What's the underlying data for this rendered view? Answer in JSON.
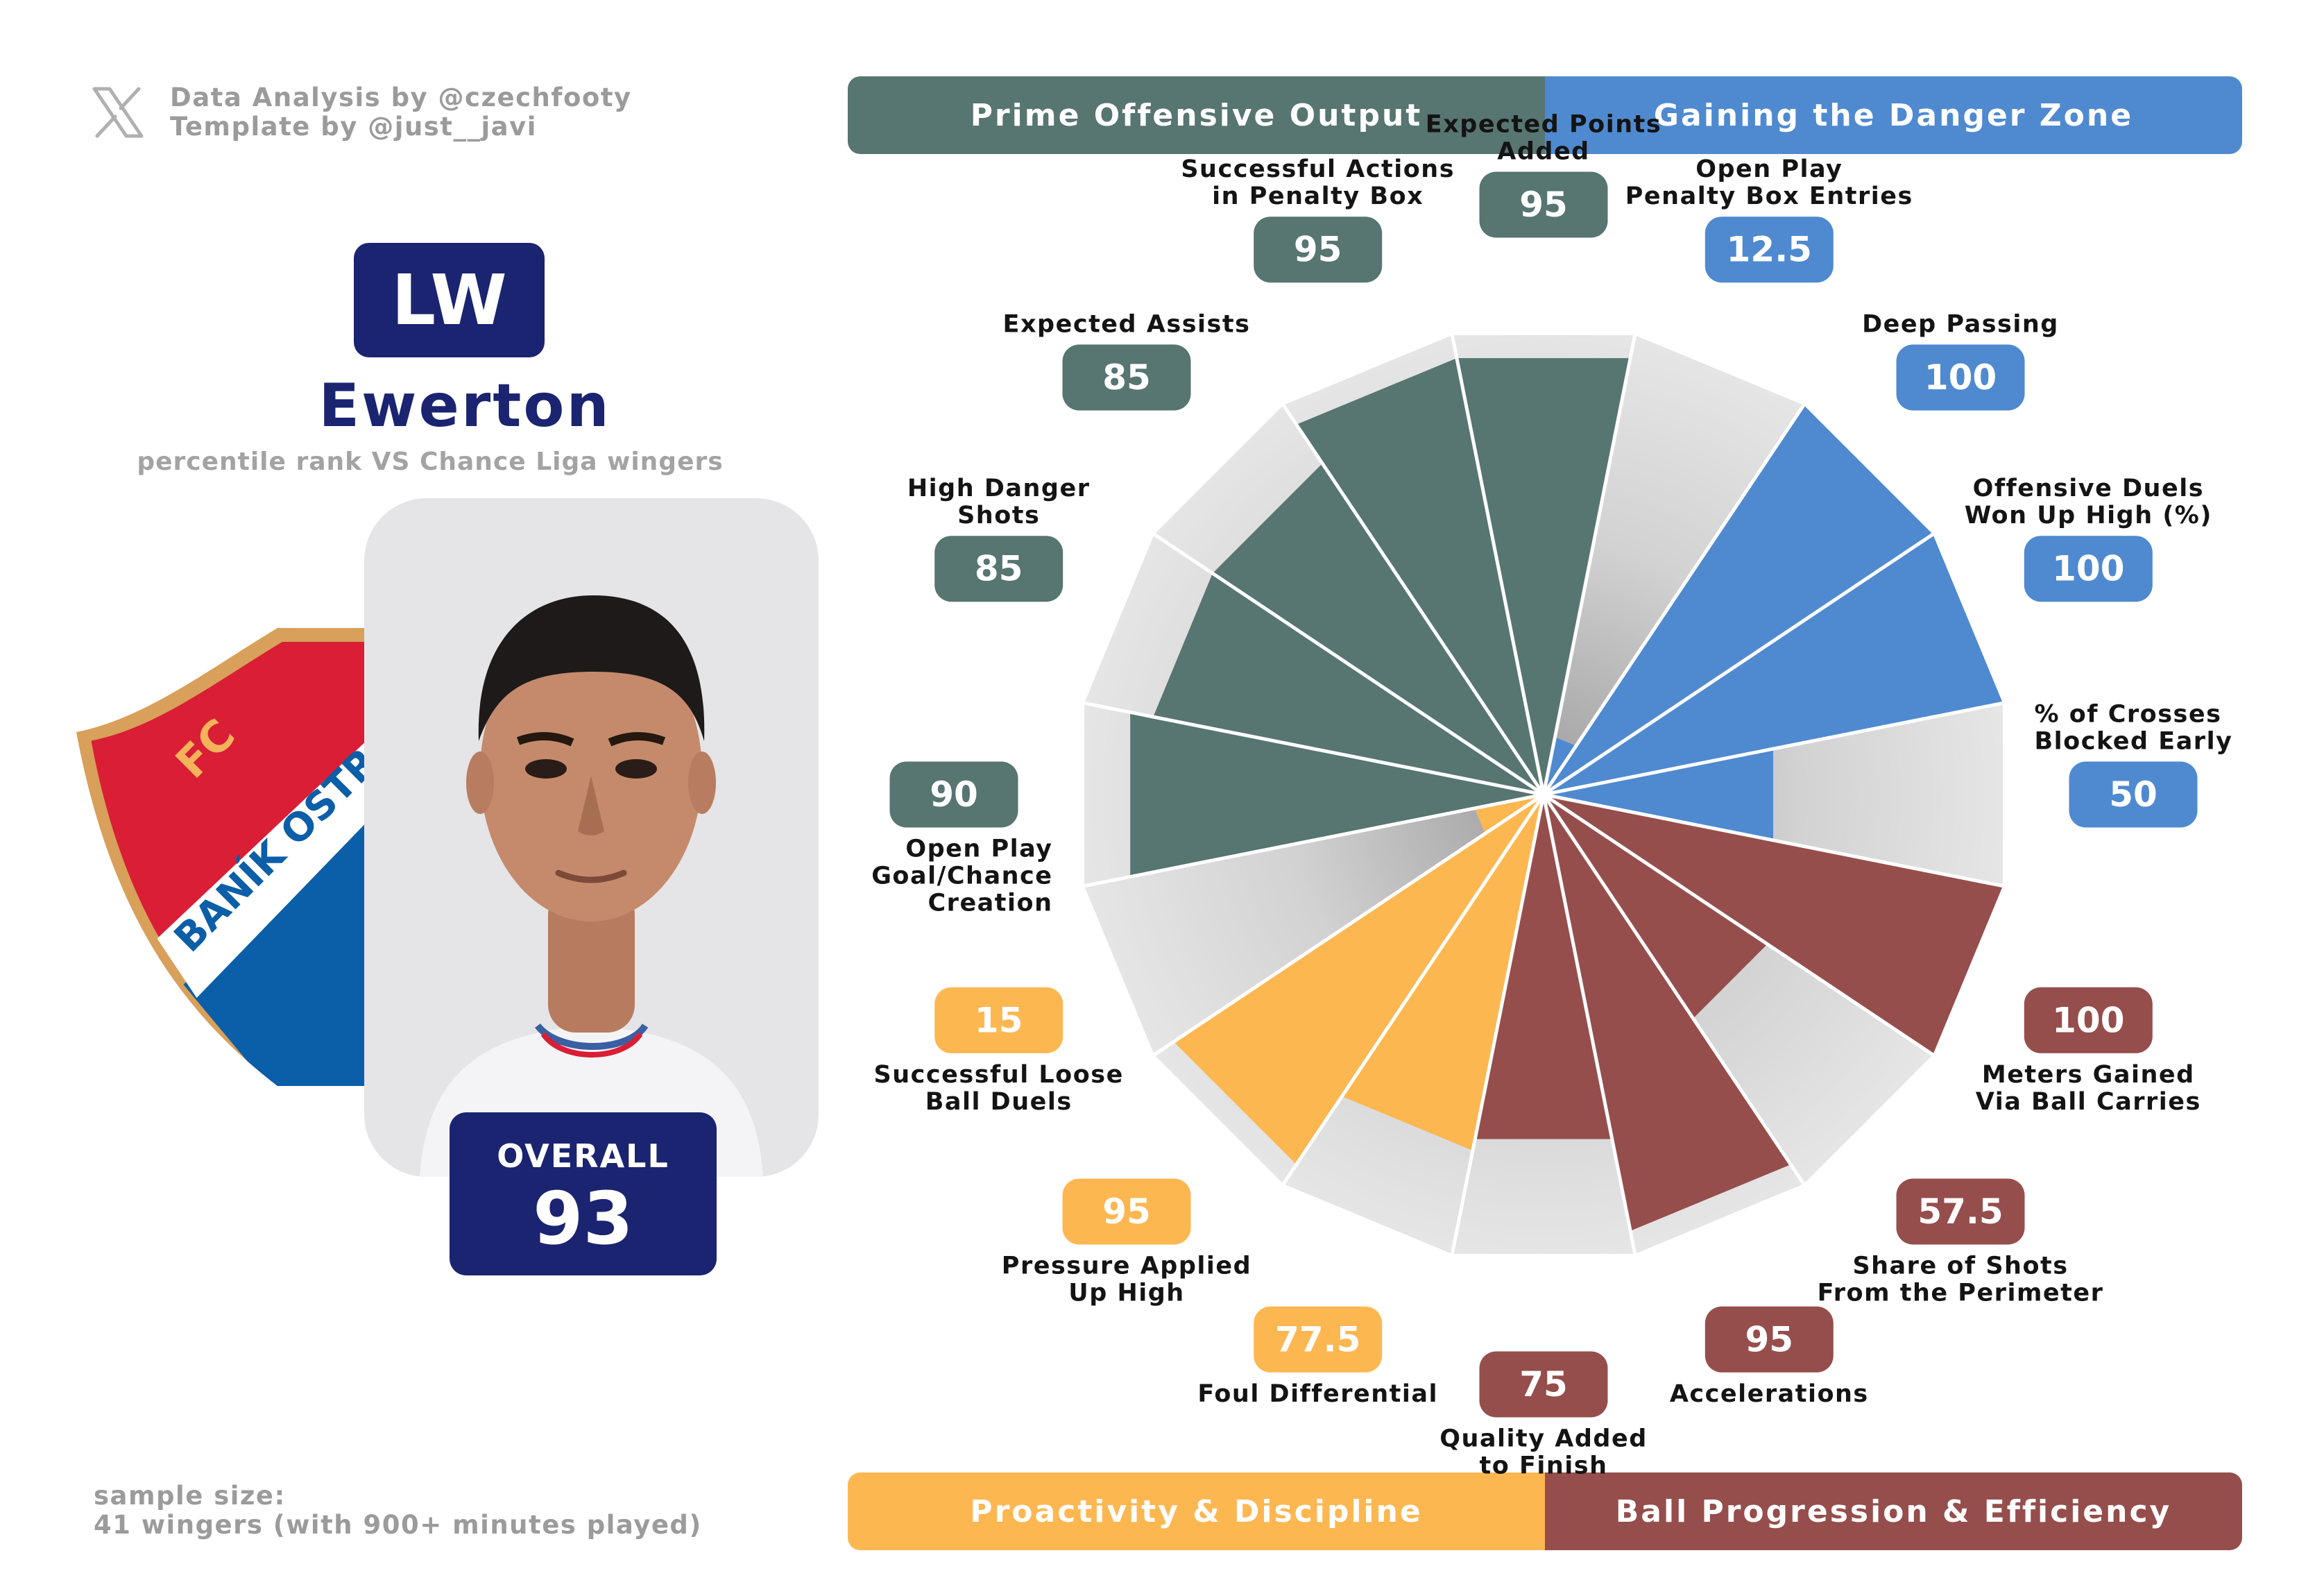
{
  "credits": {
    "line1": "Data Analysis by @czechfooty",
    "line2": "Template by @just__javi"
  },
  "player": {
    "position": "LW",
    "name": "Ewerton",
    "subtitle": "percentile rank VS Chance Liga wingers",
    "overall_label": "OVERALL",
    "overall_value": "93"
  },
  "crest": {
    "top_text": "FC",
    "band_text": "BANÍK OSTRAVA"
  },
  "sample": {
    "line1": "sample size:",
    "line2": "41 wingers (with 900+ minutes played)"
  },
  "categories": [
    {
      "label": "Prime Offensive Output",
      "color": "#577571"
    },
    {
      "label": "Gaining the Danger Zone",
      "color": "#4f8ad0"
    },
    {
      "label": "Proactivity & Discipline",
      "color": "#fdb751"
    },
    {
      "label": "Ball Progression & Efficiency",
      "color": "#954e4c"
    }
  ],
  "chart_data": {
    "type": "polar-bar",
    "scale": [
      0,
      100
    ],
    "metrics": [
      {
        "label": [
          "Expected Points",
          "Added"
        ],
        "value": 95,
        "value_label": "95",
        "category": 0
      },
      {
        "label": [
          "Open Play",
          "Penalty Box Entries"
        ],
        "value": 12.5,
        "value_label": "12.5",
        "category": 1
      },
      {
        "label": [
          "Deep Passing"
        ],
        "value": 100,
        "value_label": "100",
        "category": 1
      },
      {
        "label": [
          "Offensive Duels",
          "Won Up High (%)"
        ],
        "value": 100,
        "value_label": "100",
        "category": 1
      },
      {
        "label": [
          "% of Crosses",
          "Blocked Early"
        ],
        "value": 50,
        "value_label": "50",
        "category": 1
      },
      {
        "label": [
          "Meters Gained",
          "Via Ball Carries"
        ],
        "value": 100,
        "value_label": "100",
        "category": 3
      },
      {
        "label": [
          "Share of Shots",
          "From the Perimeter"
        ],
        "value": 57.5,
        "value_label": "57.5",
        "category": 3
      },
      {
        "label": [
          "Accelerations"
        ],
        "value": 95,
        "value_label": "95",
        "category": 3
      },
      {
        "label": [
          "Quality Added",
          "to Finish"
        ],
        "value": 75,
        "value_label": "75",
        "category": 3
      },
      {
        "label": [
          "Foul Differential"
        ],
        "value": 77.5,
        "value_label": "77.5",
        "category": 2
      },
      {
        "label": [
          "Pressure Applied",
          "Up High"
        ],
        "value": 95,
        "value_label": "95",
        "category": 2
      },
      {
        "label": [
          "Successful Loose",
          "Ball Duels"
        ],
        "value": 15,
        "value_label": "15",
        "category": 2
      },
      {
        "label": [
          "Open Play",
          "Goal/Chance",
          "Creation"
        ],
        "value": 90,
        "value_label": "90",
        "category": 0
      },
      {
        "label": [
          "High Danger",
          "Shots"
        ],
        "value": 85,
        "value_label": "85",
        "category": 0
      },
      {
        "label": [
          "Expected Assists"
        ],
        "value": 85,
        "value_label": "85",
        "category": 0
      },
      {
        "label": [
          "Successful Actions",
          "in Penalty Box"
        ],
        "value": 95,
        "value_label": "95",
        "category": 0
      }
    ]
  }
}
